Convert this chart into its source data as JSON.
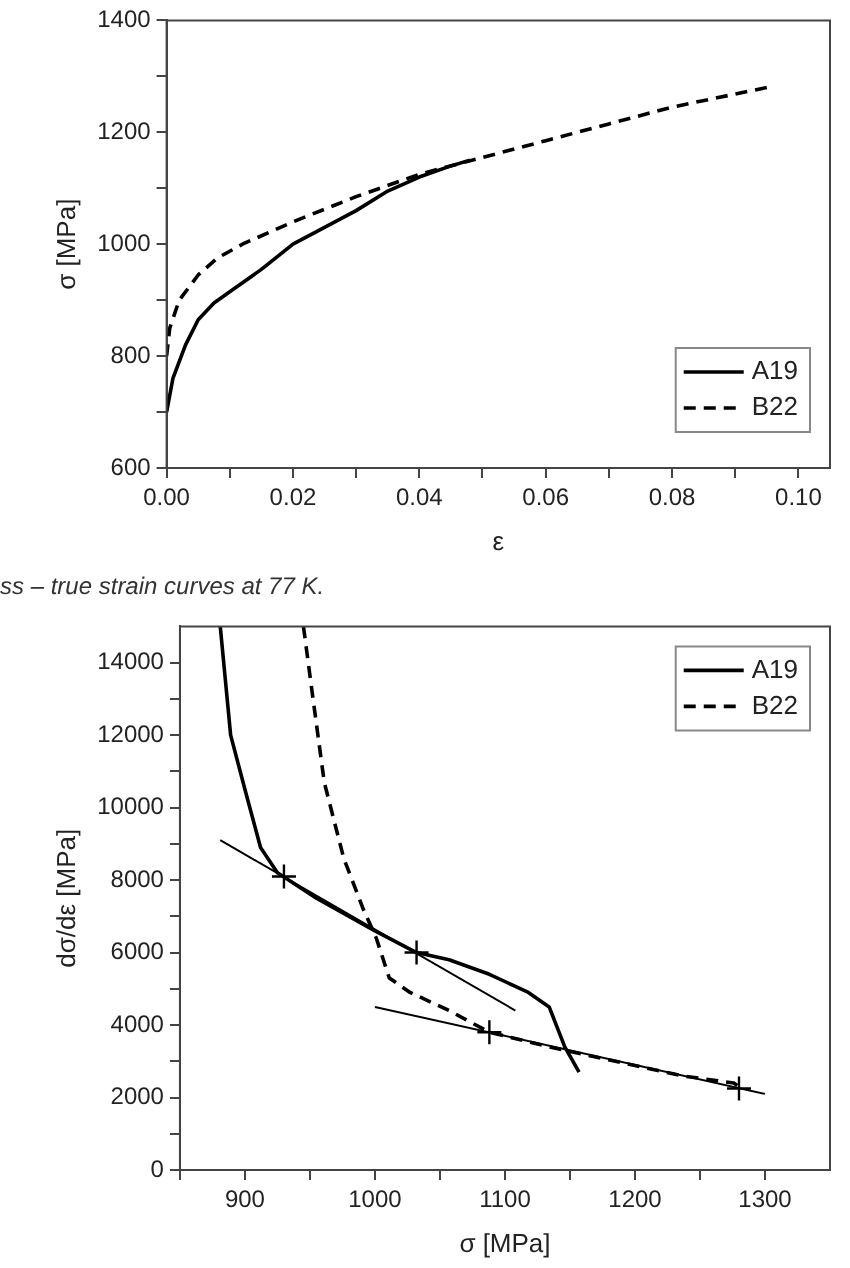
{
  "chart_data": [
    {
      "type": "line",
      "xlabel": "ε",
      "ylabel": "σ [MPa]",
      "xlim": [
        0,
        0.105
      ],
      "ylim": [
        600,
        1400
      ],
      "xticks": [
        {
          "value": 0,
          "label": "0.00"
        },
        {
          "value": 0.01,
          "label": null
        },
        {
          "value": 0.02,
          "label": "0.02"
        },
        {
          "value": 0.03,
          "label": null
        },
        {
          "value": 0.04,
          "label": "0.04"
        },
        {
          "value": 0.05,
          "label": null
        },
        {
          "value": 0.06,
          "label": "0.06"
        },
        {
          "value": 0.07,
          "label": null
        },
        {
          "value": 0.08,
          "label": "0.08"
        },
        {
          "value": 0.09,
          "label": null
        },
        {
          "value": 0.1,
          "label": "0.10"
        }
      ],
      "yticks": [
        600,
        {
          "value": 700,
          "label": null
        },
        800,
        {
          "value": 900,
          "label": null
        },
        1000,
        {
          "value": 1100,
          "label": null
        },
        1200,
        {
          "value": 1300,
          "label": null
        },
        1400
      ],
      "grid": false,
      "legend": "bottom right",
      "series": [
        {
          "name": "A19",
          "color": "#000000",
          "line_style": "solid",
          "marker": "none",
          "x": [
            0,
            0.001,
            0.003,
            0.005,
            0.0075,
            0.01,
            0.015,
            0.02,
            0.025,
            0.03,
            0.035,
            0.04,
            0.045,
            0.048
          ],
          "values": [
            700,
            760,
            820,
            865,
            895,
            915,
            955,
            1000,
            1030,
            1060,
            1095,
            1120,
            1140,
            1150
          ]
        },
        {
          "name": "B22",
          "color": "#000000",
          "line_style": "dashed",
          "marker": "none",
          "x": [
            0,
            0.0005,
            0.002,
            0.005,
            0.008,
            0.012,
            0.02,
            0.03,
            0.04,
            0.05,
            0.06,
            0.07,
            0.08,
            0.095
          ],
          "values": [
            800,
            850,
            900,
            945,
            975,
            1000,
            1040,
            1085,
            1125,
            1155,
            1185,
            1215,
            1245,
            1280
          ]
        }
      ],
      "annotations": [
        "ss – true strain curves at 77 K."
      ]
    },
    {
      "type": "line",
      "xlabel": "σ [MPa]",
      "ylabel": "dσ/dε [MPa]",
      "xlim": [
        850,
        1350
      ],
      "ylim": [
        0,
        15000
      ],
      "xticks": [
        {
          "value": 850,
          "label": null
        },
        900,
        {
          "value": 950,
          "label": null
        },
        1000,
        {
          "value": 1050,
          "label": null
        },
        1100,
        {
          "value": 1150,
          "label": null
        },
        1200,
        {
          "value": 1250,
          "label": null
        },
        1300
      ],
      "yticks": [
        0,
        {
          "value": 1000,
          "label": null
        },
        2000,
        {
          "value": 3000,
          "label": null
        },
        4000,
        {
          "value": 5000,
          "label": null
        },
        6000,
        {
          "value": 7000,
          "label": null
        },
        8000,
        {
          "value": 9000,
          "label": null
        },
        10000,
        {
          "value": 11000,
          "label": null
        },
        12000,
        {
          "value": 13000,
          "label": null
        },
        14000
      ],
      "grid": false,
      "legend": "top right",
      "series": [
        {
          "name": "A19",
          "color": "#000000",
          "line_style": "solid",
          "marker": "none",
          "x": [
            881,
            889,
            900,
            912,
            925,
            955,
            1000,
            1032,
            1057,
            1088,
            1118,
            1134,
            1146,
            1157
          ],
          "values": [
            15000,
            12000,
            10500,
            8900,
            8200,
            7500,
            6600,
            6000,
            5800,
            5400,
            4900,
            4500,
            3400,
            2700
          ]
        },
        {
          "name": "B22",
          "color": "#000000",
          "line_style": "dashed",
          "marker": "none",
          "x": [
            945,
            952,
            961,
            976,
            991,
            1001,
            1011,
            1027,
            1057,
            1088,
            1134,
            1185,
            1236,
            1276,
            1280
          ],
          "values": [
            15000,
            13100,
            10700,
            8600,
            7200,
            6400,
            5300,
            4900,
            4400,
            3800,
            3400,
            3000,
            2600,
            2400,
            2300
          ]
        },
        {
          "color": "#000000",
          "line_style": "solid",
          "marker": "none",
          "x": [
            881,
            1108
          ],
          "values": [
            9100,
            4400
          ]
        },
        {
          "color": "#000000",
          "line_style": "solid",
          "marker": "none",
          "x": [
            1000,
            1300
          ],
          "values": [
            4500,
            2100
          ]
        },
        {
          "color": "#000000",
          "marker": "cross",
          "type": "scatter",
          "x": [
            930,
            1032,
            1088,
            1280
          ],
          "values": [
            8100,
            6000,
            3800,
            2250
          ]
        }
      ]
    }
  ]
}
